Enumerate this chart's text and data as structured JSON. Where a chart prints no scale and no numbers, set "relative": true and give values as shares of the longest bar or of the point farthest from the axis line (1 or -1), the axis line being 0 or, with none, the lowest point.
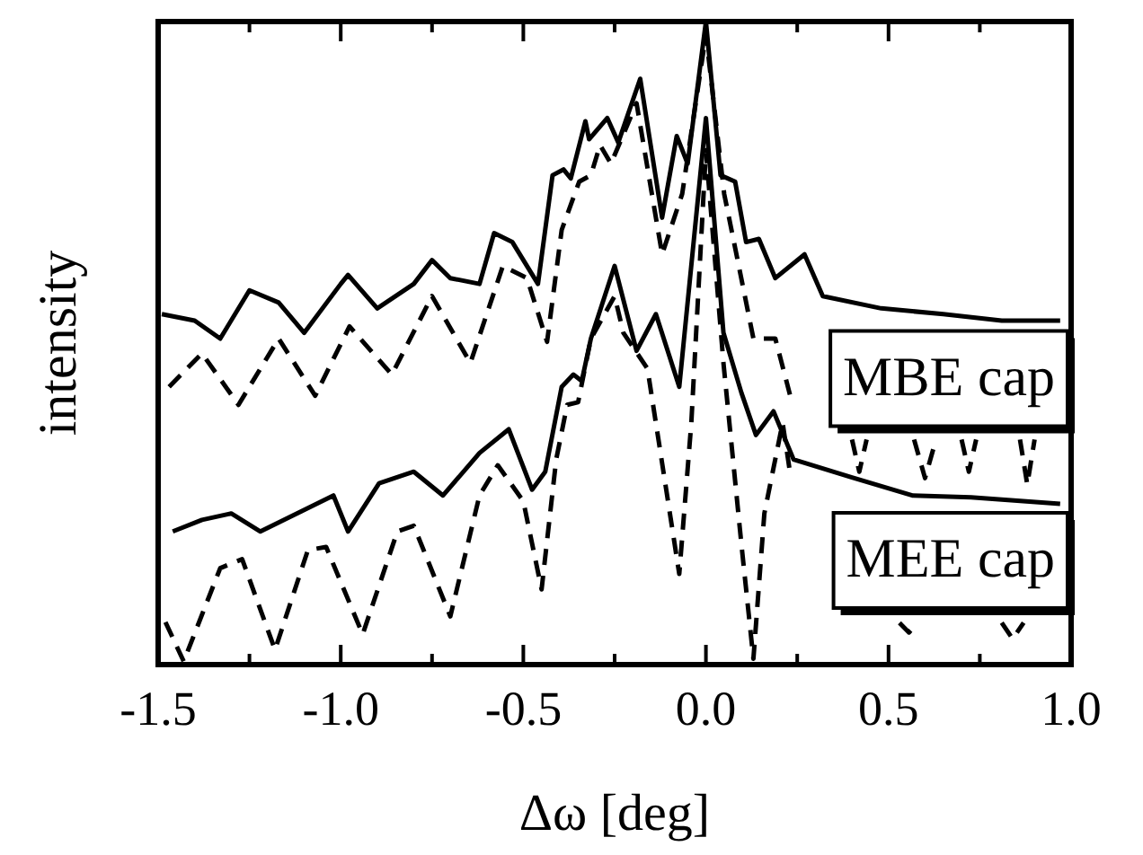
{
  "chart_data": {
    "type": "line",
    "relative": true,
    "xlabel": "Δω [deg]",
    "ylabel": "intensity",
    "xlim": [
      -1.5,
      1.0
    ],
    "xticks": [
      {
        "value": -1.5,
        "label": "-1.5"
      },
      {
        "value": -1.25,
        "label": null
      },
      {
        "value": -1.0,
        "label": "-1.0"
      },
      {
        "value": -0.75,
        "label": null
      },
      {
        "value": -0.5,
        "label": "-0.5"
      },
      {
        "value": -0.25,
        "label": null
      },
      {
        "value": 0,
        "label": "0.0"
      },
      {
        "value": 0.25,
        "label": null
      },
      {
        "value": 0.5,
        "label": "0.5"
      },
      {
        "value": 0.75,
        "label": null
      },
      {
        "value": 1.0,
        "label": "1.0"
      }
    ],
    "annotations": [
      "MBE cap",
      "MEE cap"
    ],
    "series": [
      {
        "color": "#000000",
        "line_style": "solid",
        "x": [
          -1.49,
          -1.4,
          -1.33,
          -1.25,
          -1.17,
          -1.1,
          -1.0,
          -0.98,
          -0.9,
          -0.8,
          -0.75,
          -0.7,
          -0.62,
          -0.58,
          -0.53,
          -0.46,
          -0.42,
          -0.39,
          -0.37,
          -0.33,
          -0.32,
          -0.27,
          -0.24,
          -0.18,
          -0.12,
          -0.08,
          -0.05,
          0.0,
          0.04,
          0.08,
          0.11,
          0.145,
          0.19,
          0.27,
          0.32,
          0.48,
          0.65,
          0.81,
          0.97
        ],
        "values": [
          0.545,
          0.535,
          0.507,
          0.582,
          0.563,
          0.516,
          0.592,
          0.606,
          0.554,
          0.592,
          0.629,
          0.601,
          0.592,
          0.671,
          0.657,
          0.592,
          0.761,
          0.77,
          0.756,
          0.845,
          0.817,
          0.85,
          0.812,
          0.911,
          0.695,
          0.822,
          0.779,
          1.0,
          0.761,
          0.751,
          0.657,
          0.662,
          0.601,
          0.638,
          0.573,
          0.554,
          0.545,
          0.535,
          0.535
        ]
      },
      {
        "color": "#000000",
        "line_style": "dashed",
        "x": [
          -1.47,
          -1.38,
          -1.28,
          -1.17,
          -1.07,
          -0.976,
          -0.86,
          -0.75,
          -0.645,
          -0.556,
          -0.49,
          -0.435,
          -0.395,
          -0.347,
          -0.315,
          -0.29,
          -0.26,
          -0.19,
          -0.12,
          -0.065,
          0.0,
          0.05,
          0.09,
          0.13,
          0.19,
          0.23,
          0.3,
          0.4,
          0.42,
          0.44,
          0.5,
          0.57,
          0.6,
          0.63,
          0.66,
          0.7,
          0.72,
          0.74,
          0.8,
          0.86,
          0.88,
          0.9
        ],
        "values": [
          0.432,
          0.484,
          0.404,
          0.507,
          0.418,
          0.526,
          0.451,
          0.573,
          0.469,
          0.62,
          0.601,
          0.502,
          0.676,
          0.751,
          0.761,
          0.808,
          0.779,
          0.873,
          0.638,
          0.732,
          0.98,
          0.732,
          0.62,
          0.507,
          0.507,
          0.42,
          null,
          0.35,
          0.3,
          0.35,
          null,
          0.35,
          0.29,
          0.35,
          null,
          0.35,
          0.3,
          0.35,
          null,
          0.35,
          0.28,
          0.35
        ]
      },
      {
        "color": "#000000",
        "line_style": "solid",
        "x": [
          -1.46,
          -1.38,
          -1.3,
          -1.22,
          -1.12,
          -1.02,
          -0.98,
          -0.895,
          -0.8,
          -0.72,
          -0.62,
          -0.54,
          -0.476,
          -0.44,
          -0.395,
          -0.363,
          -0.34,
          -0.315,
          -0.25,
          -0.19,
          -0.137,
          -0.073,
          0.0,
          0.048,
          0.097,
          0.137,
          0.185,
          0.24,
          0.4,
          0.565,
          0.726,
          0.97
        ],
        "values": [
          0.207,
          0.225,
          0.235,
          0.207,
          0.235,
          0.263,
          0.207,
          0.282,
          0.3,
          0.263,
          0.329,
          0.366,
          0.272,
          0.3,
          0.432,
          0.451,
          0.441,
          0.507,
          0.62,
          0.488,
          0.545,
          0.432,
          0.85,
          0.516,
          0.423,
          0.357,
          0.394,
          0.319,
          0.291,
          0.263,
          0.26,
          0.25
        ]
      },
      {
        "color": "#000000",
        "line_style": "dashed",
        "x": [
          -1.48,
          -1.43,
          -1.33,
          -1.27,
          -1.18,
          -1.09,
          -1.04,
          -0.94,
          -0.845,
          -0.8,
          -0.7,
          -0.62,
          -0.57,
          -0.5,
          -0.45,
          -0.41,
          -0.38,
          -0.35,
          -0.315,
          -0.25,
          -0.226,
          -0.16,
          -0.073,
          -0.04,
          0.0,
          0.048,
          0.097,
          0.13,
          0.16,
          0.21,
          0.23,
          0.3,
          0.53,
          0.556,
          0.58,
          0.7,
          0.81,
          0.84,
          0.87
        ],
        "values": [
          0.066,
          0.005,
          0.15,
          0.164,
          0.023,
          0.178,
          0.183,
          0.047,
          0.207,
          0.216,
          0.075,
          0.263,
          0.31,
          0.254,
          0.117,
          0.319,
          0.404,
          0.408,
          0.507,
          0.573,
          0.516,
          0.46,
          0.141,
          0.376,
          0.8,
          0.469,
          0.188,
          0.009,
          0.235,
          0.376,
          0.3,
          null,
          0.065,
          0.05,
          0.065,
          null,
          0.065,
          0.04,
          0.065
        ]
      }
    ]
  }
}
